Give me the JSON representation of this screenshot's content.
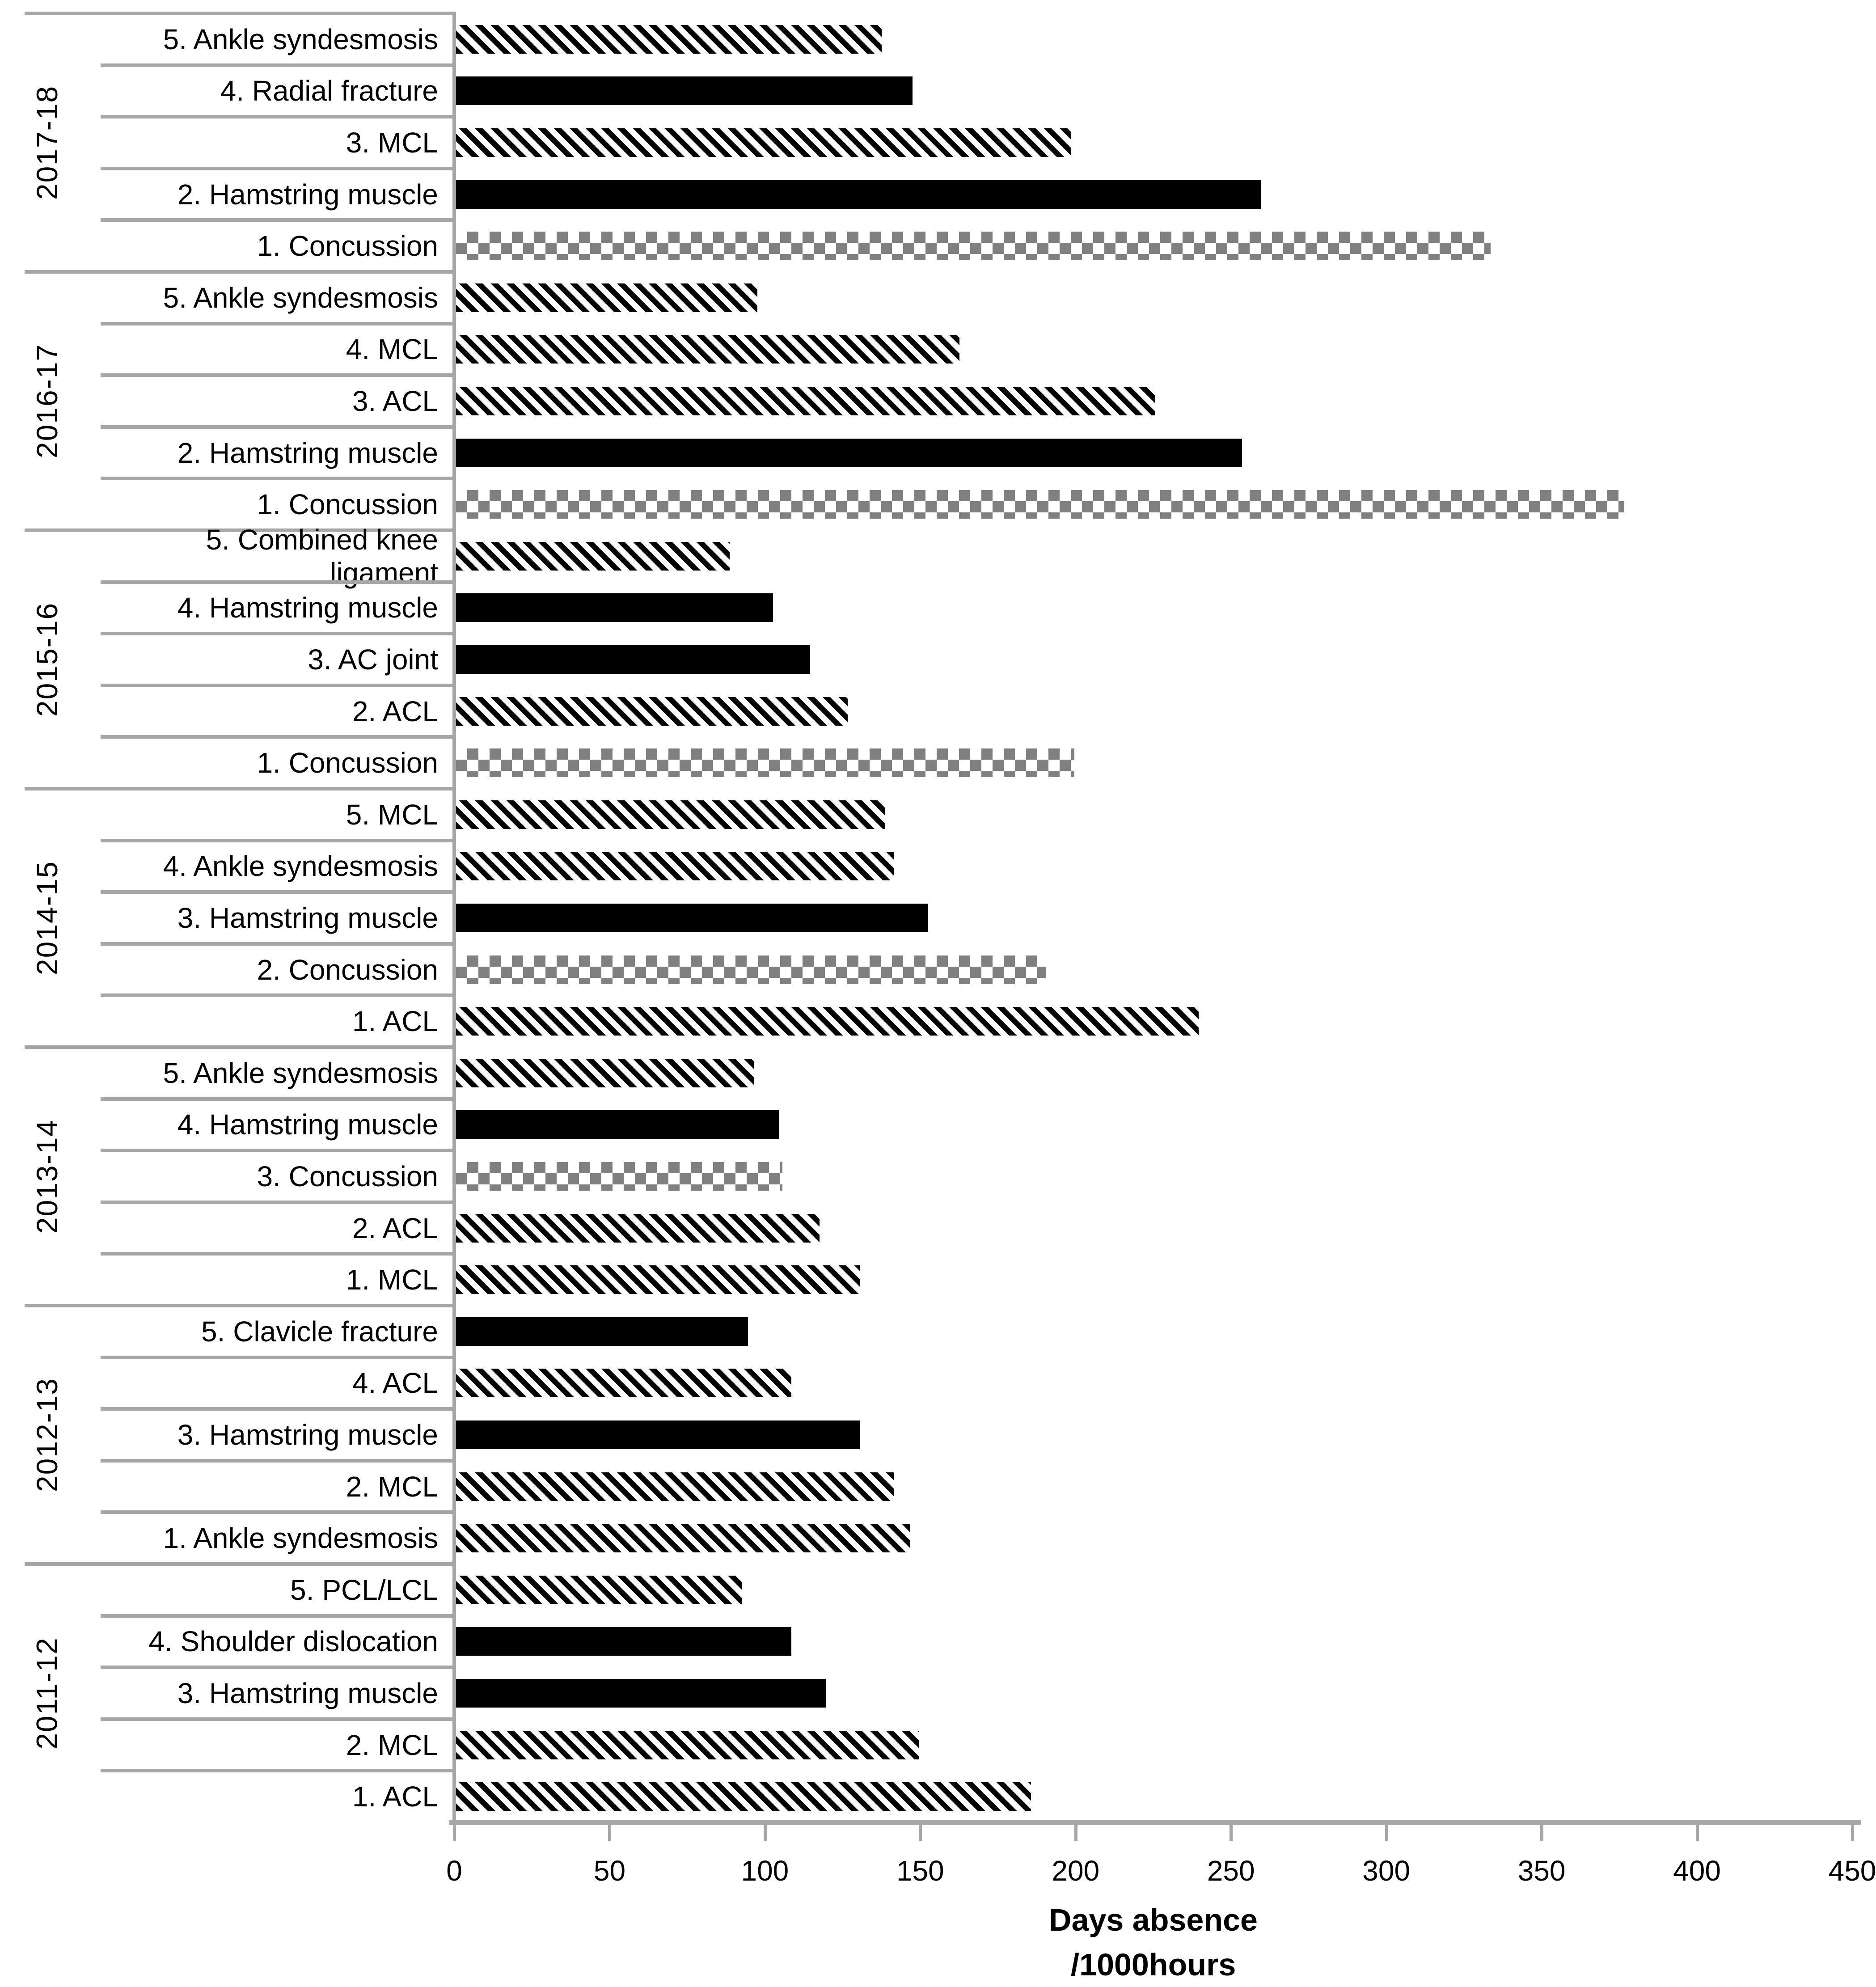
{
  "chart_data": {
    "type": "bar",
    "orientation": "horizontal",
    "xlabel_line1": "Days absence",
    "xlabel_line2": "/1000hours",
    "xlim": [
      0,
      450
    ],
    "xticks": [
      0,
      50,
      100,
      150,
      200,
      250,
      300,
      350,
      400,
      450
    ],
    "grid": false,
    "legend_position": "none",
    "bar_patterns_used": [
      "diagonal",
      "solid",
      "checker"
    ],
    "groups": [
      {
        "season": "2017-18",
        "bars": [
          {
            "label": "5. Ankle syndesmosis",
            "value": 137,
            "pattern": "diagonal"
          },
          {
            "label": "4. Radial fracture",
            "value": 147,
            "pattern": "solid"
          },
          {
            "label": "3. MCL",
            "value": 198,
            "pattern": "diagonal"
          },
          {
            "label": "2. Hamstring muscle",
            "value": 259,
            "pattern": "solid"
          },
          {
            "label": "1. Concussion",
            "value": 333,
            "pattern": "checker"
          }
        ]
      },
      {
        "season": "2016-17",
        "bars": [
          {
            "label": "5. Ankle syndesmosis",
            "value": 97,
            "pattern": "diagonal"
          },
          {
            "label": "4. MCL",
            "value": 162,
            "pattern": "diagonal"
          },
          {
            "label": "3. ACL",
            "value": 225,
            "pattern": "diagonal"
          },
          {
            "label": "2. Hamstring muscle",
            "value": 253,
            "pattern": "solid"
          },
          {
            "label": "1. Concussion",
            "value": 376,
            "pattern": "checker"
          }
        ]
      },
      {
        "season": "2015-16",
        "bars": [
          {
            "label": "5. Combined knee ligament",
            "value": 88,
            "pattern": "diagonal"
          },
          {
            "label": "4. Hamstring muscle",
            "value": 102,
            "pattern": "solid"
          },
          {
            "label": "3. AC joint",
            "value": 114,
            "pattern": "solid"
          },
          {
            "label": "2. ACL",
            "value": 126,
            "pattern": "diagonal"
          },
          {
            "label": "1. Concussion",
            "value": 199,
            "pattern": "checker"
          }
        ]
      },
      {
        "season": "2014-15",
        "bars": [
          {
            "label": "5. MCL",
            "value": 138,
            "pattern": "diagonal"
          },
          {
            "label": "4. Ankle syndesmosis",
            "value": 141,
            "pattern": "diagonal"
          },
          {
            "label": "3. Hamstring muscle",
            "value": 152,
            "pattern": "solid"
          },
          {
            "label": "2. Concussion",
            "value": 190,
            "pattern": "checker"
          },
          {
            "label": "1. ACL",
            "value": 239,
            "pattern": "diagonal"
          }
        ]
      },
      {
        "season": "2013-14",
        "bars": [
          {
            "label": "5. Ankle syndesmosis",
            "value": 96,
            "pattern": "diagonal"
          },
          {
            "label": "4. Hamstring muscle",
            "value": 104,
            "pattern": "solid"
          },
          {
            "label": "3. Concussion",
            "value": 105,
            "pattern": "checker"
          },
          {
            "label": "2. ACL",
            "value": 117,
            "pattern": "diagonal"
          },
          {
            "label": "1. MCL",
            "value": 130,
            "pattern": "diagonal"
          }
        ]
      },
      {
        "season": "2012-13",
        "bars": [
          {
            "label": "5. Clavicle fracture",
            "value": 94,
            "pattern": "solid"
          },
          {
            "label": "4. ACL",
            "value": 108,
            "pattern": "diagonal"
          },
          {
            "label": "3. Hamstring muscle",
            "value": 130,
            "pattern": "solid"
          },
          {
            "label": "2. MCL",
            "value": 141,
            "pattern": "diagonal"
          },
          {
            "label": "1. Ankle syndesmosis",
            "value": 146,
            "pattern": "diagonal"
          }
        ]
      },
      {
        "season": "2011-12",
        "bars": [
          {
            "label": "5. PCL/LCL",
            "value": 92,
            "pattern": "diagonal"
          },
          {
            "label": "4. Shoulder dislocation",
            "value": 108,
            "pattern": "solid"
          },
          {
            "label": "3. Hamstring muscle",
            "value": 119,
            "pattern": "solid"
          },
          {
            "label": "2. MCL",
            "value": 149,
            "pattern": "diagonal"
          },
          {
            "label": "1. ACL",
            "value": 185,
            "pattern": "diagonal"
          }
        ]
      }
    ],
    "colors": {
      "bar_black": "#000000",
      "checker_grey": "#808080",
      "line_grey": "#a6a6a6",
      "text": "#000000",
      "background": "#ffffff"
    }
  }
}
